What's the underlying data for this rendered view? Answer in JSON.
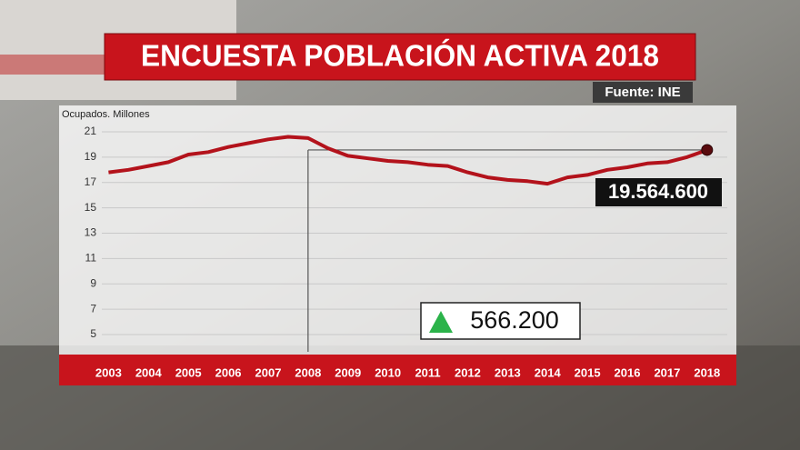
{
  "chart_data": {
    "type": "line",
    "title": "ENCUESTA POBLACIÓN ACTIVA 2018",
    "source": "Fuente:  INE",
    "y_label": "Ocupados. Millones",
    "x": [
      2003,
      2003.5,
      2004,
      2004.5,
      2005,
      2005.5,
      2006,
      2006.5,
      2007,
      2007.5,
      2008,
      2008.5,
      2009,
      2009.5,
      2010,
      2010.5,
      2011,
      2011.5,
      2012,
      2012.5,
      2013,
      2013.5,
      2014,
      2014.5,
      2015,
      2015.5,
      2016,
      2016.5,
      2017,
      2017.5,
      2018
    ],
    "series": [
      {
        "color": "#b3121b",
        "values": [
          17.8,
          18.0,
          18.3,
          18.6,
          19.2,
          19.4,
          19.8,
          20.1,
          20.4,
          20.6,
          20.5,
          19.7,
          19.1,
          18.9,
          18.7,
          18.6,
          18.4,
          18.3,
          17.8,
          17.4,
          17.2,
          17.1,
          16.9,
          17.4,
          17.6,
          18.0,
          18.2,
          18.5,
          18.6,
          19.0,
          19.5646
        ]
      }
    ],
    "xlim": [
      2002.9,
      2018.05
    ],
    "xticks": [
      2003,
      2004,
      2005,
      2006,
      2007,
      2008,
      2009,
      2010,
      2011,
      2012,
      2013,
      2014,
      2015,
      2016,
      2017,
      2018
    ],
    "ylim": [
      4,
      22
    ],
    "yticks": [
      5,
      7,
      9,
      11,
      13,
      15,
      17,
      19,
      21
    ],
    "grid": true,
    "annotations": {
      "last_value": "19.564.600",
      "change": "566.200"
    }
  }
}
